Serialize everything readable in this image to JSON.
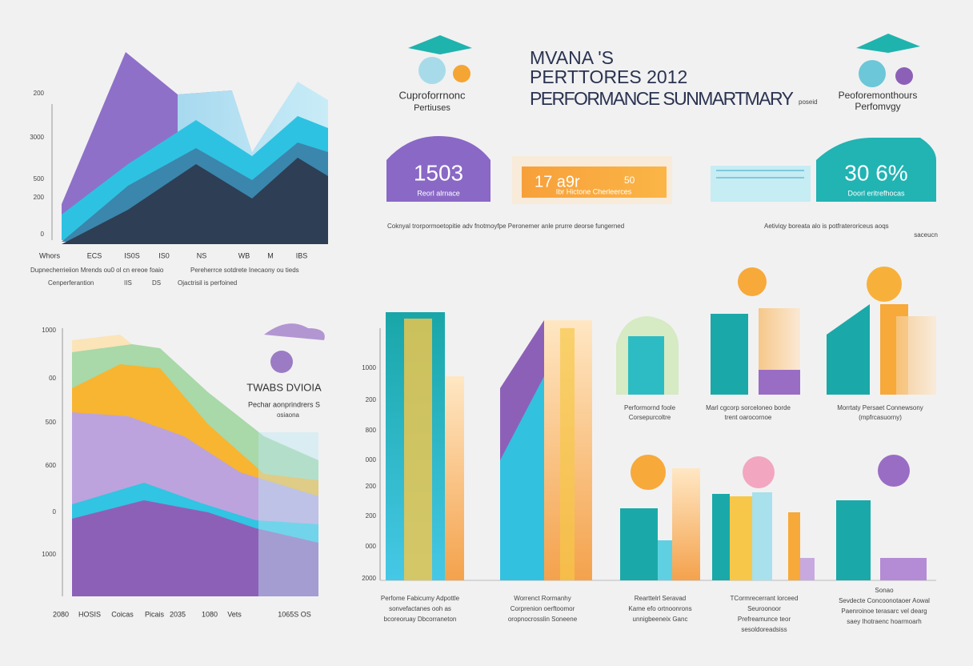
{
  "header": {
    "title_lines": [
      "MVANA 'S",
      "PERTTORES 2012",
      "PERFORMANCE SUNMARTMARY"
    ],
    "tag": "poseid"
  },
  "left_logo": {
    "lines": [
      "Cuproforrnonc",
      "Pertiuses"
    ]
  },
  "right_logo": {
    "lines": [
      "Peoforemonthours",
      "Perfomvgy"
    ]
  },
  "kpis": [
    {
      "value": "1503",
      "label": "Reorl alrnace"
    },
    {
      "value": "17 a9r",
      "extra": "50",
      "label": "Ibr Hictone Cherleerces"
    },
    {
      "value": "30 6%",
      "label": "Doorl eritrefhocas"
    }
  ],
  "kpi_captions": [
    "Coknyal trorpormoetopitie adv fnotmoyfpe Peronemer anle prurre deorse fungerned",
    "Aetiviqy boreata alo is potfrateroriceus aoqs",
    "saceucn"
  ],
  "area_chart_top": {
    "y_labels": [
      "200",
      "3000",
      "500",
      "200",
      "0"
    ],
    "x_labels": [
      "Whors",
      "ECS",
      "IS0S",
      "IS0",
      "NS",
      "WB",
      "M",
      "IBS"
    ],
    "notes": [
      "Dupnecherrieiion Mrends ou0 ol cn ereoe foaio",
      "Pereherrce sotdrete Inecaony ou tieds",
      "Cenperferantion",
      "IIS",
      "DS",
      "Ojactrisil is perfoined"
    ]
  },
  "area_chart_bottom": {
    "title": "TWABS DVIOIA",
    "subtitle": [
      "Pechar aonprindrers S",
      "osiaona"
    ],
    "y_labels": [
      "1000",
      "00",
      "500",
      "600",
      "0",
      "1000"
    ],
    "x_labels": [
      "2080",
      "HOSIS",
      "Coicas",
      "Picais",
      "2035",
      "1080",
      "Vets",
      "1065S OS"
    ]
  },
  "bar_panel": {
    "y_labels": [
      "1000",
      "200",
      "800",
      "000",
      "200",
      "200",
      "000",
      "2000"
    ],
    "captions": [
      [
        "Perfome Fabicumy Adpottle",
        "sonvefactanes ooh as",
        "bcoreoruay Dbcorraneton"
      ],
      [
        "Worrenct Rormanhy",
        "Corprenion oerftoomor",
        "oropnocrosslin Soneene"
      ],
      [
        "Rearttelrl Seravad",
        "Kame efo ortnoonrons",
        "unnigbeeneix Ganc"
      ],
      [
        "TCormrecerrant lorceed",
        "Seuroonoor",
        "Prefreamunce teor",
        "sesoldoreadsiss"
      ],
      [
        "Sonao",
        "Sevdecte Concoonotaoer Aowal",
        "Paenroinoe terasarc vel dearg",
        "saey Ihotraenc hoarmoarh"
      ]
    ],
    "mini_captions": [
      [
        "Performornd foole",
        "Corsepurcoltre"
      ],
      [
        "Marl cgcorp sorceloneo borde",
        "trent oarocornoe"
      ],
      [
        "Morrtaty Persaet Connewsony",
        "(mpfrcasuorny)"
      ]
    ]
  }
}
